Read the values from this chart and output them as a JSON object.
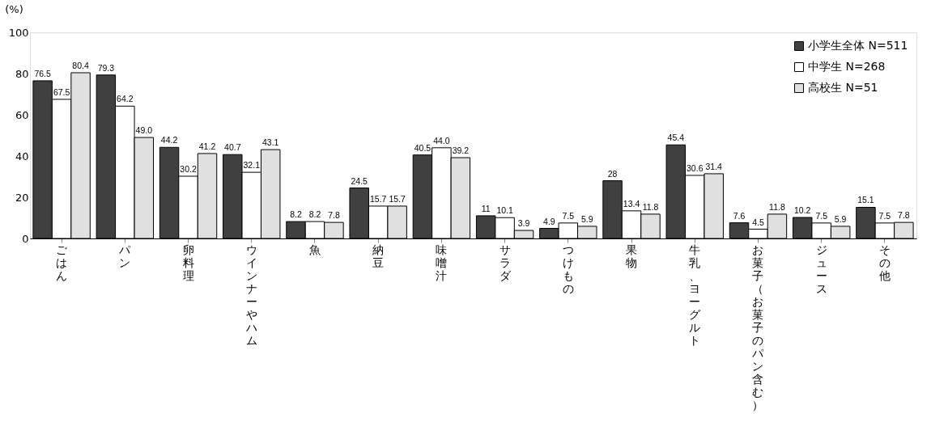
{
  "chart_data": {
    "type": "bar",
    "ylabel": "(%)",
    "categories": [
      "ごはん",
      "パン",
      "卵料理",
      "ウインナーやハム",
      "魚",
      "納豆",
      "味噌汁",
      "サラダ",
      "つけもの",
      "果物",
      "牛乳、ヨーグルト",
      "お菓子（お菓子のパン含む）",
      "ジュース",
      "その他"
    ],
    "series": [
      {
        "name": "小学生全体 N=511",
        "color": "#404040",
        "values": [
          76.5,
          79.3,
          44.2,
          40.7,
          8.2,
          24.5,
          40.5,
          11,
          4.9,
          28,
          45.4,
          7.6,
          10.2,
          15.1
        ],
        "value_labels": [
          "76.5",
          "79.3",
          "44.2",
          "40.7",
          "8.2",
          "24.5",
          "40.5",
          "11",
          "4.9",
          "28",
          "45.4",
          "7.6",
          "10.2",
          "15.1"
        ]
      },
      {
        "name": "中学生 N=268",
        "color": "#ffffff",
        "values": [
          67.5,
          64.2,
          30.2,
          32.1,
          8.2,
          15.7,
          44.0,
          10.1,
          7.5,
          13.4,
          30.6,
          4.5,
          7.5,
          7.5
        ],
        "value_labels": [
          "67.5",
          "64.2",
          "30.2",
          "32.1",
          "8.2",
          "15.7",
          "44.0",
          "10.1",
          "7.5",
          "13.4",
          "30.6",
          "4.5",
          "7.5",
          "7.5"
        ]
      },
      {
        "name": "高校生 N=51",
        "color": "#e0e0e0",
        "values": [
          80.4,
          49.0,
          41.2,
          43.1,
          7.8,
          15.7,
          39.2,
          3.9,
          5.9,
          11.8,
          31.4,
          11.8,
          5.9,
          7.8
        ],
        "value_labels": [
          "80.4",
          "49.0",
          "41.2",
          "43.1",
          "7.8",
          "15.7",
          "39.2",
          "3.9",
          "5.9",
          "11.8",
          "31.4",
          "11.8",
          "5.9",
          "7.8"
        ]
      }
    ],
    "ylim": [
      0,
      100
    ],
    "yticks": [
      0,
      20,
      40,
      60,
      80,
      100
    ],
    "grid": false,
    "legend": "top right"
  }
}
